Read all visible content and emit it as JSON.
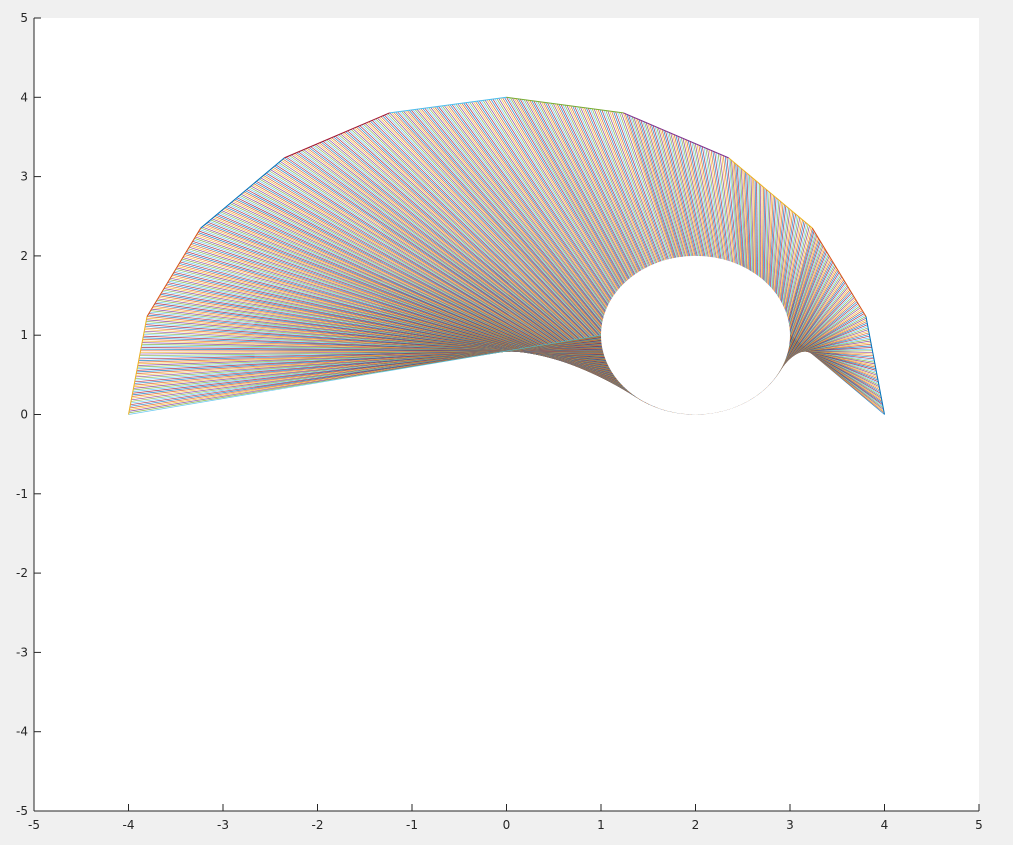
{
  "chart_data": {
    "type": "line",
    "title": "",
    "xlabel": "",
    "ylabel": "",
    "xlim": [
      -5,
      5
    ],
    "ylim": [
      -5,
      5
    ],
    "xticks": [
      -5,
      -4,
      -3,
      -2,
      -1,
      0,
      1,
      2,
      3,
      4,
      5
    ],
    "yticks": [
      -5,
      -4,
      -3,
      -2,
      -1,
      0,
      1,
      2,
      3,
      4,
      5
    ],
    "xtick_labels": [
      "-5",
      "-4",
      "-3",
      "-2",
      "-1",
      "0",
      "1",
      "2",
      "3",
      "4",
      "5"
    ],
    "ytick_labels": [
      "-5",
      "-4",
      "-3",
      "-2",
      "-1",
      "0",
      "1",
      "2",
      "3",
      "4",
      "5"
    ],
    "grid": false,
    "legend": "none",
    "outer_points": {
      "x": [
        4.0,
        3.804,
        3.236,
        2.351,
        1.236,
        0.0,
        -1.236,
        -2.351,
        -3.236,
        -3.804,
        -4.0
      ],
      "y": [
        0.0,
        1.236,
        2.351,
        3.236,
        3.804,
        4.0,
        3.804,
        3.236,
        2.351,
        1.236,
        0.0
      ]
    },
    "circle": {
      "center_x": 2,
      "center_y": 1,
      "radius": 1
    },
    "line_colors": [
      "#0072bd",
      "#d95319",
      "#edb120",
      "#7e2f8e",
      "#77ac30",
      "#4dbeee",
      "#a2142f"
    ]
  }
}
